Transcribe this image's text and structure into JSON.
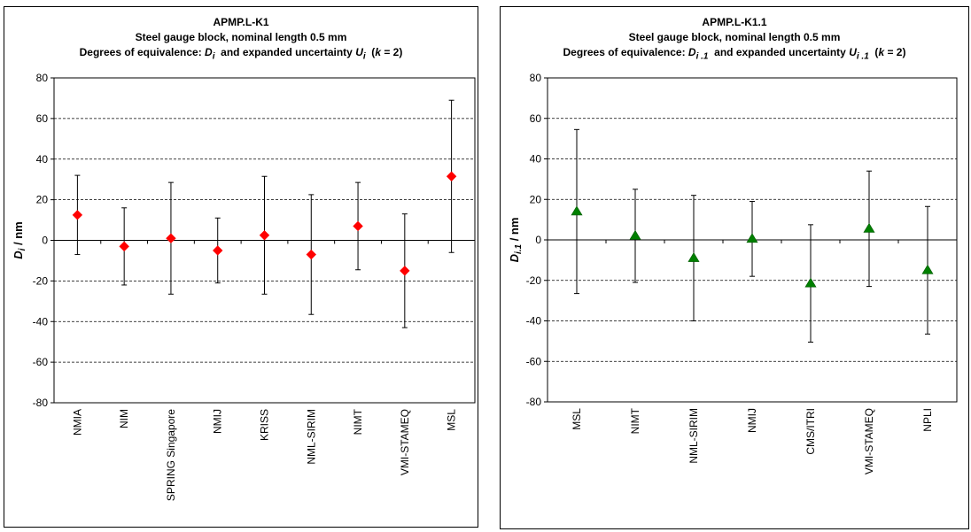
{
  "chart_data": [
    {
      "type": "scatter",
      "title": "APMP.L-K1",
      "subtitle_line1": "Steel gauge block, nominal length 0.5 mm",
      "subtitle_line2_a": "Degrees of equivalence: ",
      "subtitle_line2_di": "D",
      "subtitle_line2_di_sub": "i",
      "subtitle_line2_b": "  and expanded uncertainty ",
      "subtitle_line2_ui": "U",
      "subtitle_line2_ui_sub": "i",
      "subtitle_line2_c": "  (",
      "subtitle_line2_k": "k",
      "subtitle_line2_d": " = 2)",
      "ylabel_main": "D",
      "ylabel_sub": "i",
      "ylabel_unit": " / nm",
      "ylim": [
        -80,
        80
      ],
      "yticks": [
        80,
        60,
        40,
        20,
        0,
        -20,
        -40,
        -60,
        -80
      ],
      "grid": "horizontal dashed",
      "marker": "diamond",
      "marker_color": "#ff0000",
      "categories": [
        "NMIA",
        "NIM",
        "SPRING Singapore",
        "NMIJ",
        "KRISS",
        "NML-SIRIM",
        "NIMT",
        "VMI-STAMEQ",
        "MSL"
      ],
      "values": [
        12.5,
        -3,
        1,
        -5,
        2.5,
        -7,
        7,
        -15,
        31.5
      ],
      "uncertainty": [
        19.5,
        19,
        27.5,
        16,
        29,
        29.5,
        21.5,
        28,
        37.5
      ]
    },
    {
      "type": "scatter",
      "title": "APMP.L-K1.1",
      "subtitle_line1": "Steel gauge block, nominal length 0.5 mm",
      "subtitle_line2_a": "Degrees of equivalence: ",
      "subtitle_line2_di": "D",
      "subtitle_line2_di_sub": "i .1",
      "subtitle_line2_b": "  and expanded uncertainty ",
      "subtitle_line2_ui": "U",
      "subtitle_line2_ui_sub": "i .1",
      "subtitle_line2_c": "  (",
      "subtitle_line2_k": "k",
      "subtitle_line2_d": " = 2)",
      "ylabel_main": "D",
      "ylabel_sub": "i.1",
      "ylabel_unit": " / nm",
      "ylim": [
        -80,
        80
      ],
      "yticks": [
        80,
        60,
        40,
        20,
        0,
        -20,
        -40,
        -60,
        -80
      ],
      "grid": "horizontal dashed",
      "marker": "triangle",
      "marker_color": "#008000",
      "categories": [
        "MSL",
        "NIMT",
        "NML-SIRIM",
        "NMIJ",
        "CMS/ITRI",
        "VMI-STAMEQ",
        "NPLI"
      ],
      "values": [
        14,
        2,
        -9,
        0.5,
        -21.5,
        5.5,
        -15
      ],
      "uncertainty": [
        40.5,
        23,
        31,
        18.5,
        29,
        28.5,
        31.5
      ]
    }
  ]
}
